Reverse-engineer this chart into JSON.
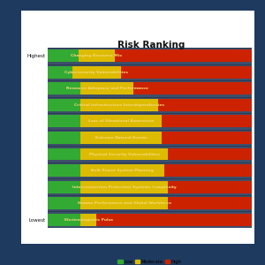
{
  "title": "Risk Ranking",
  "categories": [
    "Changing Resource Mix",
    "Cybersecurity Vulnerabilities",
    "Resource Adequacy and Performance",
    "Critical Infrastructure Interdependencies",
    "Loss of Situational Awareness",
    "Extreme Natural Events",
    "Physical Security Vulnerabilities",
    "Bulk Power System Planning",
    "Interconnection Protection Systems Complexity",
    "Human Performance and Global Workforce",
    "Electromagnetic Pulse"
  ],
  "low": [
    15,
    12,
    16,
    16,
    16,
    16,
    16,
    16,
    16,
    16,
    16
  ],
  "moderate": [
    18,
    24,
    26,
    38,
    40,
    40,
    43,
    41,
    43,
    43,
    8
  ],
  "high": [
    67,
    64,
    58,
    46,
    44,
    44,
    41,
    43,
    41,
    41,
    76
  ],
  "colors": {
    "low": "#33aa33",
    "moderate": "#ddbb00",
    "high": "#cc2200"
  },
  "legend_labels": [
    "Low",
    "Moderate",
    "High"
  ],
  "outer_bg": "#1e3a5f",
  "panel_bg": "#ffffff",
  "chart_bg": "#3d4f6a",
  "text_color": "#f5d87a",
  "ytick_color": "#111111",
  "title_color": "#111111",
  "separator_color": "#2a3a55"
}
